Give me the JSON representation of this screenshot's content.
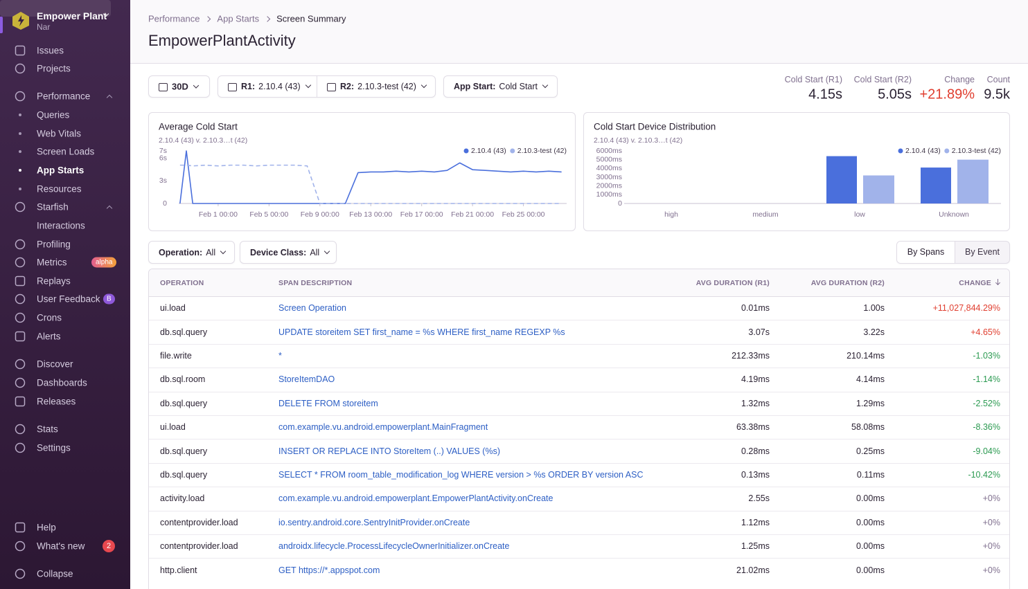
{
  "sidebar": {
    "org": "Empower Plant",
    "user": "Nar",
    "nav": [
      {
        "label": "Issues"
      },
      {
        "label": "Projects"
      },
      {
        "label": "Performance"
      },
      {
        "label": "Queries"
      },
      {
        "label": "Web Vitals"
      },
      {
        "label": "Screen Loads"
      },
      {
        "label": "App Starts"
      },
      {
        "label": "Resources"
      },
      {
        "label": "Starfish"
      },
      {
        "label": "Interactions"
      },
      {
        "label": "Profiling"
      },
      {
        "label": "Metrics",
        "badge": "alpha"
      },
      {
        "label": "Replays"
      },
      {
        "label": "User Feedback",
        "badge": "B"
      },
      {
        "label": "Crons"
      },
      {
        "label": "Alerts"
      },
      {
        "label": "Discover"
      },
      {
        "label": "Dashboards"
      },
      {
        "label": "Releases"
      },
      {
        "label": "Stats"
      },
      {
        "label": "Settings"
      }
    ],
    "footer": [
      {
        "label": "Help"
      },
      {
        "label": "What's new",
        "badge": "2"
      },
      {
        "label": "Collapse"
      }
    ]
  },
  "breadcrumbs": [
    "Performance",
    "App Starts",
    "Screen Summary"
  ],
  "title": "EmpowerPlantActivity",
  "filters": {
    "period": "30D",
    "releases": [
      {
        "label": "R1:",
        "value": "2.10.4 (43)"
      },
      {
        "label": "R2:",
        "value": "2.10.3-test (42)"
      }
    ],
    "app_start": {
      "label": "App Start:",
      "value": "Cold Start"
    }
  },
  "summary": [
    {
      "label": "Cold Start (R1)",
      "value": "4.15s"
    },
    {
      "label": "Cold Start (R2)",
      "value": "5.05s"
    },
    {
      "label": "Change",
      "value": "+21.89%"
    },
    {
      "label": "Count",
      "value": "9.5k"
    }
  ],
  "chart_data": [
    {
      "type": "line",
      "title": "Average Cold Start",
      "subtitle": "2.10.4 (43) v. 2.10.3…t (42)",
      "x": [
        -2,
        -1.5,
        -1,
        0,
        1,
        2,
        3,
        4,
        5,
        6,
        7,
        8,
        9,
        10,
        11,
        12,
        13,
        14,
        15,
        16,
        17,
        18,
        19,
        20,
        21,
        22,
        23,
        24,
        25,
        26,
        27,
        28
      ],
      "series": [
        {
          "name": "2.10.4 (43)",
          "color": "#4a6fdc",
          "values": [
            0,
            7,
            0,
            0,
            0,
            0,
            0,
            0,
            0,
            0,
            0,
            0,
            0,
            0,
            0,
            4.1,
            4.2,
            4.2,
            4.3,
            4.2,
            4.3,
            4.2,
            4.4,
            5.4,
            4.5,
            4.4,
            4.3,
            4.2,
            4.3,
            4.2,
            4.3,
            4.2
          ]
        },
        {
          "name": "2.10.3-test (42)",
          "color": "#a1b3ea",
          "dashed": true,
          "values": [
            5.1,
            5.1,
            5.0,
            5.1,
            5.0,
            5.1,
            5.1,
            5.0,
            5.1,
            5.1,
            5.1,
            5.0,
            0,
            0,
            0,
            0,
            0,
            0,
            0,
            0,
            0,
            0,
            0,
            0,
            0,
            0,
            0,
            0,
            0,
            0,
            0,
            0
          ]
        }
      ],
      "xlim": [
        -2.1,
        28.4
      ],
      "xticks": [
        {
          "value": 1,
          "label": "Feb 1 00:00"
        },
        {
          "value": 5,
          "label": "Feb 5 00:00"
        },
        {
          "value": 9,
          "label": "Feb 9 00:00"
        },
        {
          "value": 13,
          "label": "Feb 13 00:00"
        },
        {
          "value": 17,
          "label": "Feb 17 00:00"
        },
        {
          "value": 21,
          "label": "Feb 21 00:00"
        },
        {
          "value": 25,
          "label": "Feb 25 00:00"
        }
      ],
      "ylim": [
        0,
        7
      ],
      "yticks": [
        0,
        {
          "value": 3,
          "label": "3s"
        },
        {
          "value": 6,
          "label": "6s"
        },
        {
          "value": 7,
          "label": "7s"
        }
      ],
      "grid": false,
      "legend": "top-right"
    },
    {
      "type": "bar",
      "title": "Cold Start Device Distribution",
      "subtitle": "2.10.4 (43) v. 2.10.3…t (42)",
      "categories": [
        "high",
        "medium",
        "low",
        "Unknown"
      ],
      "series": [
        {
          "name": "2.10.4 (43)",
          "color": "#4a6fdc",
          "values": [
            null,
            null,
            5400,
            4100
          ]
        },
        {
          "name": "2.10.3-test (42)",
          "color": "#a1b3ea",
          "values": [
            null,
            null,
            3200,
            5000
          ]
        }
      ],
      "ylim": [
        0,
        6000
      ],
      "yticks": [
        0,
        {
          "value": 1000,
          "label": "1000ms"
        },
        {
          "value": 2000,
          "label": "2000ms"
        },
        {
          "value": 3000,
          "label": "3000ms"
        },
        {
          "value": 4000,
          "label": "4000ms"
        },
        {
          "value": 5000,
          "label": "5000ms"
        },
        {
          "value": 6000,
          "label": "6000ms"
        }
      ],
      "grid": false,
      "legend": "top-right"
    }
  ],
  "table_filters": [
    {
      "label": "Operation:",
      "value": "All"
    },
    {
      "label": "Device Class:",
      "value": "All"
    }
  ],
  "view_toggle": [
    "By Spans",
    "By Event"
  ],
  "table": {
    "columns": [
      "OPERATION",
      "SPAN DESCRIPTION",
      "AVG DURATION (R1)",
      "AVG DURATION (R2)",
      "CHANGE"
    ],
    "rows": [
      [
        "ui.load",
        "Screen Operation",
        "0.01ms",
        "1.00s",
        "+11,027,844.29%"
      ],
      [
        "db.sql.query",
        "UPDATE storeitem SET first_name = %s WHERE first_name REGEXP %s",
        "3.07s",
        "3.22s",
        "+4.65%"
      ],
      [
        "file.write",
        "*",
        "212.33ms",
        "210.14ms",
        "-1.03%"
      ],
      [
        "db.sql.room",
        "StoreItemDAO",
        "4.19ms",
        "4.14ms",
        "-1.14%"
      ],
      [
        "db.sql.query",
        "DELETE FROM storeitem",
        "1.32ms",
        "1.29ms",
        "-2.52%"
      ],
      [
        "ui.load",
        "com.example.vu.android.empowerplant.MainFragment",
        "63.38ms",
        "58.08ms",
        "-8.36%"
      ],
      [
        "db.sql.query",
        "INSERT OR REPLACE INTO StoreItem (..) VALUES (%s)",
        "0.28ms",
        "0.25ms",
        "-9.04%"
      ],
      [
        "db.sql.query",
        "SELECT * FROM room_table_modification_log WHERE version > %s ORDER BY version ASC",
        "0.13ms",
        "0.11ms",
        "-10.42%"
      ],
      [
        "activity.load",
        "com.example.vu.android.empowerplant.EmpowerPlantActivity.onCreate",
        "2.55s",
        "0.00ms",
        "+0%"
      ],
      [
        "contentprovider.load",
        "io.sentry.android.core.SentryInitProvider.onCreate",
        "1.12ms",
        "0.00ms",
        "+0%"
      ],
      [
        "contentprovider.load",
        "androidx.lifecycle.ProcessLifecycleOwnerInitializer.onCreate",
        "1.25ms",
        "0.00ms",
        "+0%"
      ],
      [
        "http.client",
        "GET https://*.appspot.com",
        "21.02ms",
        "0.00ms",
        "+0%"
      ]
    ]
  }
}
